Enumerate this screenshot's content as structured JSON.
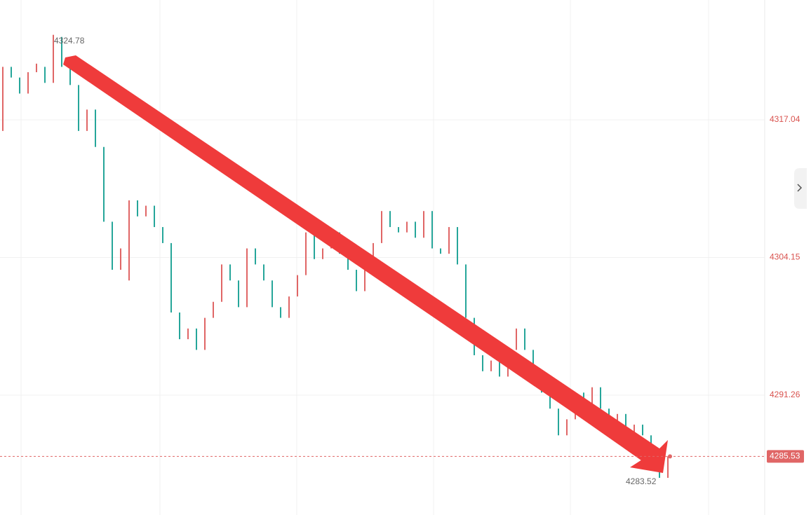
{
  "chart_data": {
    "type": "openclose",
    "open": [
      4316.0,
      4322.0,
      4321.0,
      4319.5,
      4321.5,
      4322.0,
      4320.5,
      4324.8,
      4322.0,
      4320.3,
      4316.0,
      4318.0,
      4314.5,
      4307.5,
      4303.0,
      4302.0,
      4309.5,
      4308.0,
      4309.0,
      4307.0,
      4305.5,
      4299.0,
      4296.5,
      4297.5,
      4295.5,
      4298.5,
      4300.0,
      4303.5,
      4302.0,
      4299.5,
      4305.0,
      4303.5,
      4302.0,
      4299.5,
      4298.5,
      4300.5,
      4302.5,
      4306.5,
      4304.0,
      4305.0,
      4306.5,
      4304.5,
      4303.0,
      4301.0,
      4303.5,
      4305.5,
      4308.5,
      4307.0,
      4306.5,
      4307.5,
      4306.0,
      4308.5,
      4305.0,
      4304.5,
      4307.0,
      4303.5,
      4298.5,
      4295.0,
      4293.5,
      4294.5,
      4293.0,
      4295.5,
      4297.5,
      4295.5,
      4293.5,
      4291.5,
      4290.0,
      4287.5,
      4289.0,
      4291.5,
      4290.0,
      4292.0,
      4290.0,
      4287.5,
      4289.5,
      4287.0,
      4288.5,
      4287.5,
      4285.0,
      4283.52
    ],
    "close": [
      4322.0,
      4321.0,
      4319.5,
      4321.5,
      4322.3,
      4320.5,
      4325.0,
      4322.0,
      4320.3,
      4316.0,
      4318.0,
      4314.5,
      4307.5,
      4303.0,
      4305.0,
      4309.5,
      4308.0,
      4309.0,
      4307.0,
      4305.5,
      4299.0,
      4296.5,
      4297.5,
      4295.5,
      4298.5,
      4300.0,
      4303.5,
      4302.0,
      4299.5,
      4305.0,
      4303.5,
      4302.0,
      4299.5,
      4298.5,
      4300.5,
      4302.5,
      4306.5,
      4304.0,
      4305.0,
      4306.5,
      4304.5,
      4303.0,
      4301.0,
      4303.5,
      4305.5,
      4308.5,
      4307.0,
      4306.5,
      4307.5,
      4306.0,
      4308.5,
      4305.0,
      4304.5,
      4307.0,
      4303.5,
      4298.5,
      4295.0,
      4293.5,
      4294.5,
      4293.0,
      4295.5,
      4297.5,
      4295.5,
      4293.5,
      4291.5,
      4290.0,
      4287.5,
      4289.0,
      4291.5,
      4290.0,
      4292.0,
      4290.0,
      4287.5,
      4289.5,
      4287.0,
      4288.5,
      4287.5,
      4285.0,
      4283.52,
      4285.53
    ],
    "up_color": "#e06666",
    "down_color": "#26a69a",
    "ylim": [
      4280.04,
      4328.26
    ],
    "yticks": [
      4291.26,
      4304.15,
      4317.04
    ],
    "grid": true,
    "high_label": 4324.78,
    "low_label": 4283.52,
    "last_price": 4285.53
  }
}
